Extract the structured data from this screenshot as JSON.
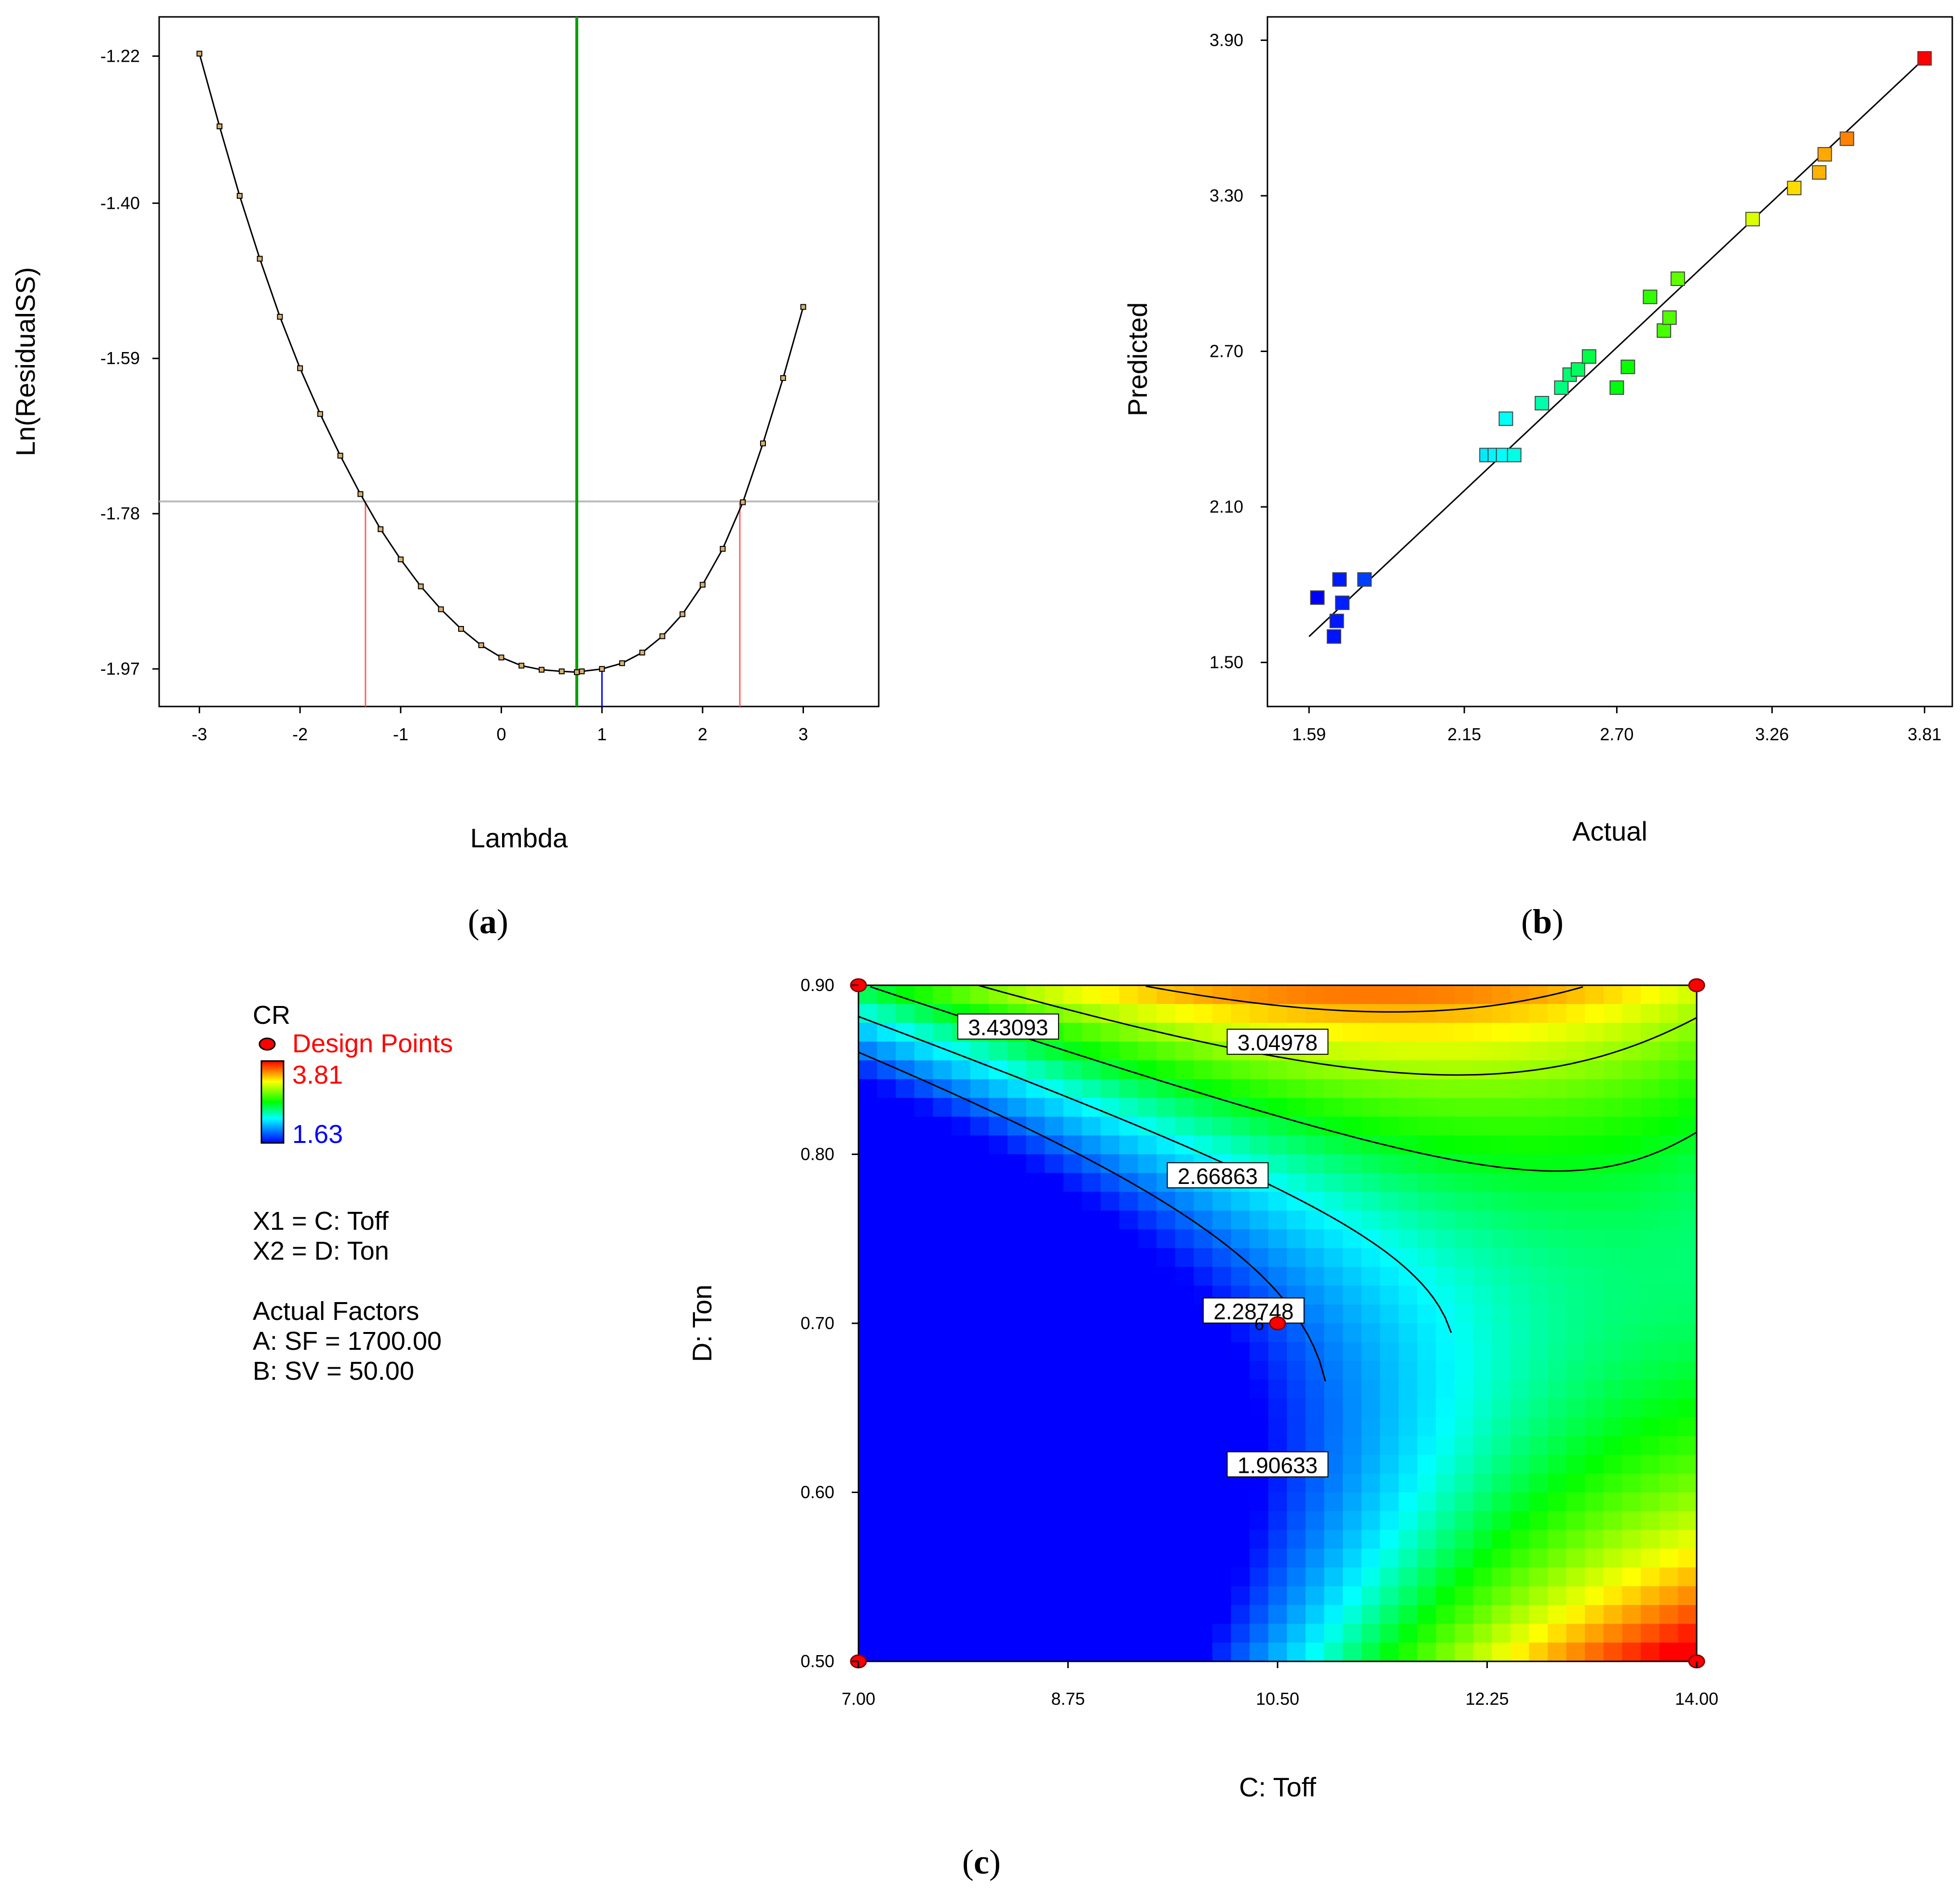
{
  "chart_data": [
    {
      "panel": "a",
      "type": "line",
      "caption_letter": "a",
      "xlabel": "Lambda",
      "ylabel": "Ln(ResidualSS)",
      "xlim": [
        -3.4,
        3.75
      ],
      "ylim": [
        -2.016,
        -1.172
      ],
      "xticks": [
        -3,
        -2,
        -1,
        0,
        1,
        2,
        3
      ],
      "yticks": [
        -1.22,
        -1.4,
        -1.59,
        -1.78,
        -1.97
      ],
      "ytick_labels": [
        "-1.22",
        "-1.40",
        "-1.59",
        "-1.78",
        "-1.97"
      ],
      "series": [
        {
          "name": "Ln(ResidualSS)",
          "x": [
            -3.0,
            -2.8,
            -2.6,
            -2.4,
            -2.2,
            -2.0,
            -1.8,
            -1.6,
            -1.4,
            -1.2,
            -1.0,
            -0.8,
            -0.6,
            -0.4,
            -0.2,
            0.0,
            0.2,
            0.4,
            0.6,
            0.75,
            0.8,
            1.0,
            1.2,
            1.4,
            1.6,
            1.8,
            2.0,
            2.2,
            2.4,
            2.6,
            2.8,
            3.0
          ],
          "y": [
            -1.217,
            -1.306,
            -1.391,
            -1.468,
            -1.539,
            -1.602,
            -1.658,
            -1.709,
            -1.756,
            -1.799,
            -1.836,
            -1.869,
            -1.897,
            -1.921,
            -1.941,
            -1.956,
            -1.966,
            -1.971,
            -1.973,
            -1.974,
            -1.973,
            -1.97,
            -1.963,
            -1.95,
            -1.93,
            -1.903,
            -1.867,
            -1.823,
            -1.766,
            -1.694,
            -1.614,
            -1.527
          ]
        }
      ],
      "best_lambda": 0.75,
      "current_lambda": 1.0,
      "ci_lower": -1.35,
      "ci_upper": 2.37,
      "ci_level": -1.765,
      "colors": {
        "curve": "#000000",
        "best": "#00a000",
        "current": "#0000ff",
        "ci": "#ff6060",
        "level": "#bbbbbb"
      }
    },
    {
      "panel": "b",
      "type": "scatter",
      "caption_letter": "b",
      "xlabel": "Actual",
      "ylabel": "Predicted",
      "xlim": [
        1.44,
        3.91
      ],
      "ylim": [
        1.33,
        3.99
      ],
      "xticks": [
        1.59,
        2.15,
        2.7,
        3.26,
        3.81
      ],
      "xtick_labels": [
        "1.59",
        "2.15",
        "2.70",
        "3.26",
        "3.81"
      ],
      "yticks": [
        1.5,
        2.1,
        2.7,
        3.3,
        3.9
      ],
      "ytick_labels": [
        "1.50",
        "2.10",
        "2.70",
        "3.30",
        "3.90"
      ],
      "fit_line": {
        "x": [
          1.59,
          3.81
        ],
        "y": [
          1.6,
          3.83
        ]
      },
      "points": {
        "actual": [
          1.62,
          1.68,
          1.69,
          1.7,
          1.71,
          1.79,
          2.23,
          2.26,
          2.29,
          2.3,
          2.33,
          2.43,
          2.5,
          2.53,
          2.56,
          2.6,
          2.7,
          2.74,
          2.82,
          2.87,
          2.89,
          2.92,
          3.19,
          3.34,
          3.43,
          3.45,
          3.53,
          3.81
        ],
        "predicted": [
          1.75,
          1.6,
          1.66,
          1.82,
          1.73,
          1.82,
          2.3,
          2.3,
          2.3,
          2.44,
          2.3,
          2.5,
          2.56,
          2.61,
          2.63,
          2.68,
          2.56,
          2.64,
          2.91,
          2.78,
          2.83,
          2.98,
          3.21,
          3.33,
          3.39,
          3.46,
          3.52,
          3.83
        ]
      },
      "colorscale": {
        "min": 1.63,
        "max": 3.81
      }
    },
    {
      "panel": "c",
      "type": "heatmap",
      "caption_letter": "c",
      "xlabel": "C: Toff",
      "ylabel": "D: Ton",
      "xlim": [
        7.0,
        14.0
      ],
      "ylim": [
        0.5,
        0.9
      ],
      "xticks": [
        7.0,
        8.75,
        10.5,
        12.25,
        14.0
      ],
      "xtick_labels": [
        "7.00",
        "8.75",
        "10.50",
        "12.25",
        "14.00"
      ],
      "yticks": [
        0.5,
        0.6,
        0.7,
        0.8,
        0.9
      ],
      "ytick_labels": [
        "0.50",
        "0.60",
        "0.70",
        "0.80",
        "0.90"
      ],
      "response": "CR",
      "response_min": 1.63,
      "response_max": 3.81,
      "contour_levels": [
        1.90633,
        2.28748,
        2.66863,
        3.04978,
        3.43093
      ],
      "contour_labels": [
        {
          "text": "3.43093",
          "x": 8.25,
          "y": 0.875
        },
        {
          "text": "3.04978",
          "x": 10.5,
          "y": 0.866
        },
        {
          "text": "2.66863",
          "x": 10.0,
          "y": 0.787
        },
        {
          "text": "2.28748",
          "x": 10.3,
          "y": 0.707
        },
        {
          "text": "1.90633",
          "x": 10.5,
          "y": 0.616
        }
      ],
      "design_points": {
        "x": [
          7.0,
          14.0,
          7.0,
          14.0,
          10.5
        ],
        "y": [
          0.9,
          0.9,
          0.5,
          0.5,
          0.7
        ]
      },
      "center_point_label": "6",
      "legend": {
        "response_name": "CR",
        "design_points_label": "Design Points",
        "max_label": "3.81",
        "min_label": "1.63",
        "x1": "X1 = C: Toff",
        "x2": "X2 = D: Ton",
        "actual_factors_title": "Actual Factors",
        "factor_a": "A: SF = 1700.00",
        "factor_b": "B: SV = 50.00"
      }
    }
  ]
}
